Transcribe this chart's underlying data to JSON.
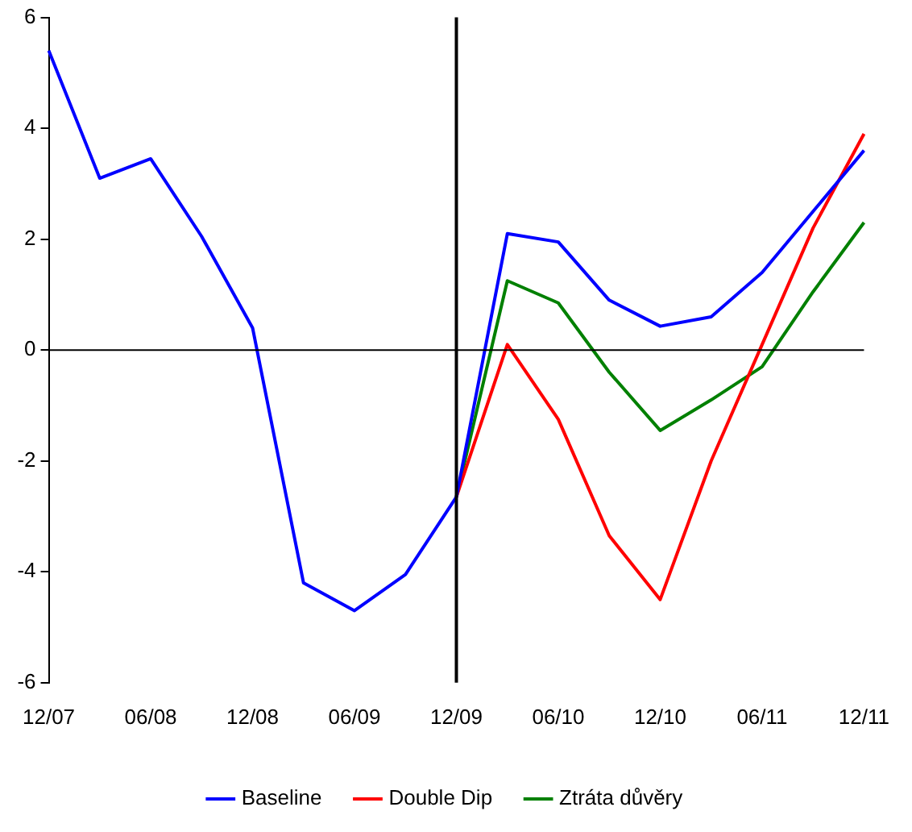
{
  "chart_data": {
    "type": "line",
    "categories": [
      "12/07",
      null,
      "06/08",
      null,
      "12/08",
      null,
      "06/09",
      null,
      "12/09",
      null,
      "06/10",
      null,
      "12/10",
      null,
      "06/11",
      null,
      "12/11"
    ],
    "series": [
      {
        "name": "Baseline",
        "color": "#0000ff",
        "values": [
          5.4,
          3.1,
          3.45,
          2.05,
          0.4,
          -4.2,
          -4.7,
          -4.05,
          -2.65,
          2.1,
          1.95,
          0.9,
          0.43,
          0.6,
          1.4,
          2.5,
          3.6
        ]
      },
      {
        "name": "Double Dip",
        "color": "#ff0000",
        "values": [
          null,
          null,
          null,
          null,
          null,
          null,
          null,
          null,
          -2.65,
          0.1,
          -1.25,
          -3.35,
          -4.5,
          -2.0,
          0.1,
          2.2,
          3.9
        ]
      },
      {
        "name": "Ztráta důvěry",
        "color": "#008000",
        "values": [
          null,
          null,
          null,
          null,
          null,
          null,
          null,
          null,
          -2.65,
          1.25,
          0.85,
          -0.4,
          -1.45,
          -0.9,
          -0.3,
          1.05,
          2.3
        ]
      }
    ],
    "ylim": [
      -6,
      6
    ],
    "yticks": [
      -6,
      -4,
      -2,
      0,
      2,
      4,
      6
    ],
    "ref_lines": [
      {
        "axis": "y",
        "value": 0,
        "color": "#000000"
      },
      {
        "axis": "x",
        "value": "12/09",
        "color": "#000000"
      }
    ],
    "grid": false,
    "legend": "bottom",
    "marker": "none",
    "line_style": "solid"
  }
}
